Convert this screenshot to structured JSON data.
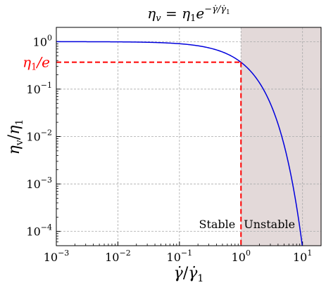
{
  "chart_data": {
    "type": "line",
    "title_parts": {
      "lhs": "η",
      "lhs_sub": "v",
      "eq": " = ",
      "rhs": "η",
      "rhs_sub": "1",
      "rhs_e": "e",
      "exponent": "−γ̇/γ̇",
      "exponent_sub": "1"
    },
    "xlabel_parts": {
      "num": "γ̇",
      "slash": "/",
      "den": "γ̇",
      "den_sub": "1"
    },
    "ylabel_parts": {
      "num": "η",
      "num_sub": "v",
      "slash": "/",
      "den": "η",
      "den_sub": "1"
    },
    "x_scale": "log",
    "y_scale": "log",
    "xlim": [
      0.001,
      20
    ],
    "ylim": [
      5e-05,
      2
    ],
    "x_ticks": [
      {
        "value": 0.001,
        "base": "10",
        "exp": "−3"
      },
      {
        "value": 0.01,
        "base": "10",
        "exp": "−2"
      },
      {
        "value": 0.1,
        "base": "10",
        "exp": "−1"
      },
      {
        "value": 1,
        "base": "10",
        "exp": "0"
      },
      {
        "value": 10,
        "base": "10",
        "exp": "1"
      }
    ],
    "y_ticks": [
      {
        "value": 0.0001,
        "base": "10",
        "exp": "−4"
      },
      {
        "value": 0.001,
        "base": "10",
        "exp": "−3"
      },
      {
        "value": 0.01,
        "base": "10",
        "exp": "−2"
      },
      {
        "value": 0.1,
        "base": "10",
        "exp": "−1"
      },
      {
        "value": 1,
        "base": "10",
        "exp": "0"
      }
    ],
    "grid": true,
    "series": [
      {
        "function": "exp(-x)",
        "color": "#0000dd",
        "x": [
          0.001,
          0.01,
          0.1,
          0.2,
          0.3,
          0.5,
          0.7,
          1,
          1.5,
          2,
          3,
          4,
          5,
          6,
          7,
          8,
          9,
          9.9
        ],
        "y": [
          0.999,
          0.99,
          0.905,
          0.819,
          0.741,
          0.607,
          0.497,
          0.368,
          0.223,
          0.135,
          0.0498,
          0.0183,
          0.00674,
          0.00248,
          0.000912,
          0.000335,
          0.000123,
          5e-05
        ]
      }
    ],
    "reference": {
      "x": 1,
      "y": 0.368,
      "color": "#ff0000",
      "label_parts": {
        "main": "η",
        "sub": "1",
        "rest": "/e"
      }
    },
    "unstable_region": {
      "x_from": 1,
      "x_to": 20,
      "color": "#e3d9d9"
    },
    "annotations": {
      "stable": "Stable",
      "unstable": "Unstable"
    }
  }
}
